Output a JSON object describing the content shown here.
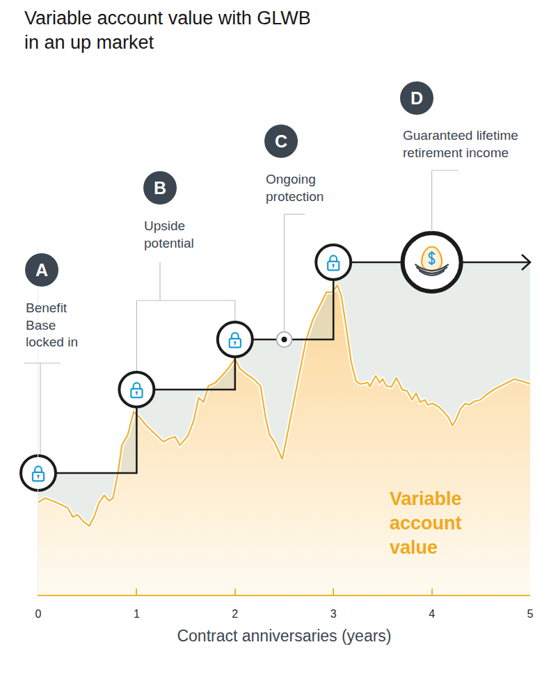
{
  "chart_data": {
    "type": "line",
    "title": "Variable account value with GLWB in an up market",
    "x_label": "Contract anniversaries (years)",
    "xlim": [
      0,
      5
    ],
    "xticks": [
      0,
      1,
      2,
      3,
      4,
      5
    ],
    "ylim": [
      0,
      100
    ],
    "tick_labels": "x",
    "grid": false,
    "series": [
      {
        "name": "Variable account value",
        "color": "#f2b134",
        "x": [
          0,
          0.07,
          0.18,
          0.3,
          0.35,
          0.4,
          0.46,
          0.52,
          0.57,
          0.62,
          0.67,
          0.72,
          0.76,
          0.81,
          0.85,
          0.91,
          0.97,
          1.03,
          1.1,
          1.2,
          1.27,
          1.34,
          1.39,
          1.44,
          1.52,
          1.58,
          1.63,
          1.68,
          1.73,
          1.8,
          1.87,
          1.94,
          2.0,
          2.05,
          2.12,
          2.19,
          2.26,
          2.31,
          2.35,
          2.4,
          2.48,
          2.51,
          2.58,
          2.65,
          2.72,
          2.79,
          2.86,
          2.93,
          2.99,
          3.04,
          3.08,
          3.13,
          3.18,
          3.23,
          3.27,
          3.35,
          3.37,
          3.43,
          3.47,
          3.5,
          3.54,
          3.59,
          3.64,
          3.7,
          3.75,
          3.8,
          3.84,
          3.88,
          3.93,
          3.96,
          4.01,
          4.07,
          4.12,
          4.17,
          4.21,
          4.25,
          4.29,
          4.34,
          4.38,
          4.43,
          4.49,
          4.56,
          4.63,
          4.7,
          4.77,
          4.84,
          4.92,
          5.0
        ],
        "values": [
          26.6,
          27.8,
          26.6,
          25,
          22.4,
          23,
          21,
          19.8,
          22.6,
          26.6,
          28.6,
          27,
          27.8,
          35,
          43,
          46,
          52.6,
          51,
          48.6,
          46,
          44,
          45,
          45.4,
          43,
          45.6,
          50,
          56.6,
          55.4,
          60,
          61,
          63,
          65.4,
          67.8,
          65,
          63.4,
          62,
          60,
          51,
          46,
          44,
          39,
          43,
          53,
          63,
          73,
          79,
          83,
          87,
          87,
          89,
          86,
          77,
          67,
          61.4,
          60.6,
          61,
          59.8,
          63,
          61,
          62,
          60,
          59.8,
          62.4,
          59,
          58.6,
          56,
          58,
          55.4,
          56,
          54.6,
          55,
          54,
          52.6,
          51,
          48.6,
          50.6,
          53.4,
          55,
          54.6,
          55.6,
          56,
          57.6,
          59,
          60,
          61,
          62,
          61.4,
          60.6
        ]
      },
      {
        "color": "#1b1b1b",
        "line_style": "step",
        "marker": "lock",
        "x": [
          0,
          1,
          2,
          3,
          5
        ],
        "values": [
          35,
          59,
          73.4,
          95.6,
          95.6
        ]
      }
    ],
    "annotations": [
      {
        "label": "A",
        "text": "Benefit Base locked in",
        "x": 0
      },
      {
        "label": "B",
        "text": "Upside potential",
        "x": [
          1,
          2
        ]
      },
      {
        "label": "C",
        "text": "Ongoing protection",
        "x": 2.5
      },
      {
        "label": "D",
        "text": "Guaranteed lifetime retirement income",
        "x": 4
      }
    ]
  }
}
